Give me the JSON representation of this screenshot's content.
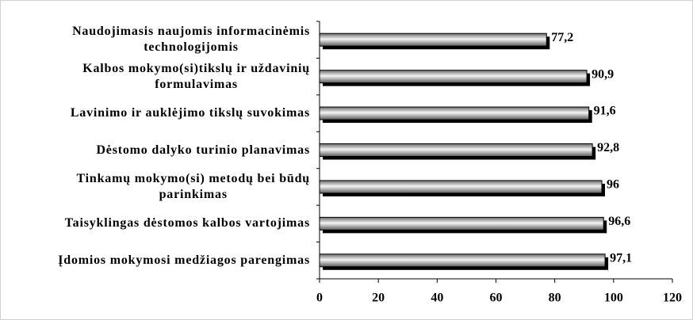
{
  "chart_data": {
    "type": "bar",
    "orientation": "horizontal",
    "categories": [
      "Naudojimasis naujomis informacinėmis\ntechnologijomis",
      "Kalbos mokymo(si)tikslų ir uždavinių\nformulavimas",
      "Lavinimo ir auklėjimo tikslų suvokimas",
      "Dėstomo dalyko turinio planavimas",
      "Tinkamų mokymo(si) metodų bei būdų\nparinkimas",
      "Taisyklingas dėstomos kalbos vartojimas",
      "Įdomios mokymosi medžiagos parengimas"
    ],
    "values": [
      77.2,
      90.9,
      91.6,
      92.8,
      96,
      96.6,
      97.1
    ],
    "value_labels": [
      "77,2",
      "90,9",
      "91,6",
      "92,8",
      "96",
      "96,6",
      "97,1"
    ],
    "color": "#a0a0a0",
    "xlim": [
      0,
      120
    ],
    "xticks": [
      0,
      20,
      40,
      60,
      80,
      100,
      120
    ],
    "grid": false
  }
}
